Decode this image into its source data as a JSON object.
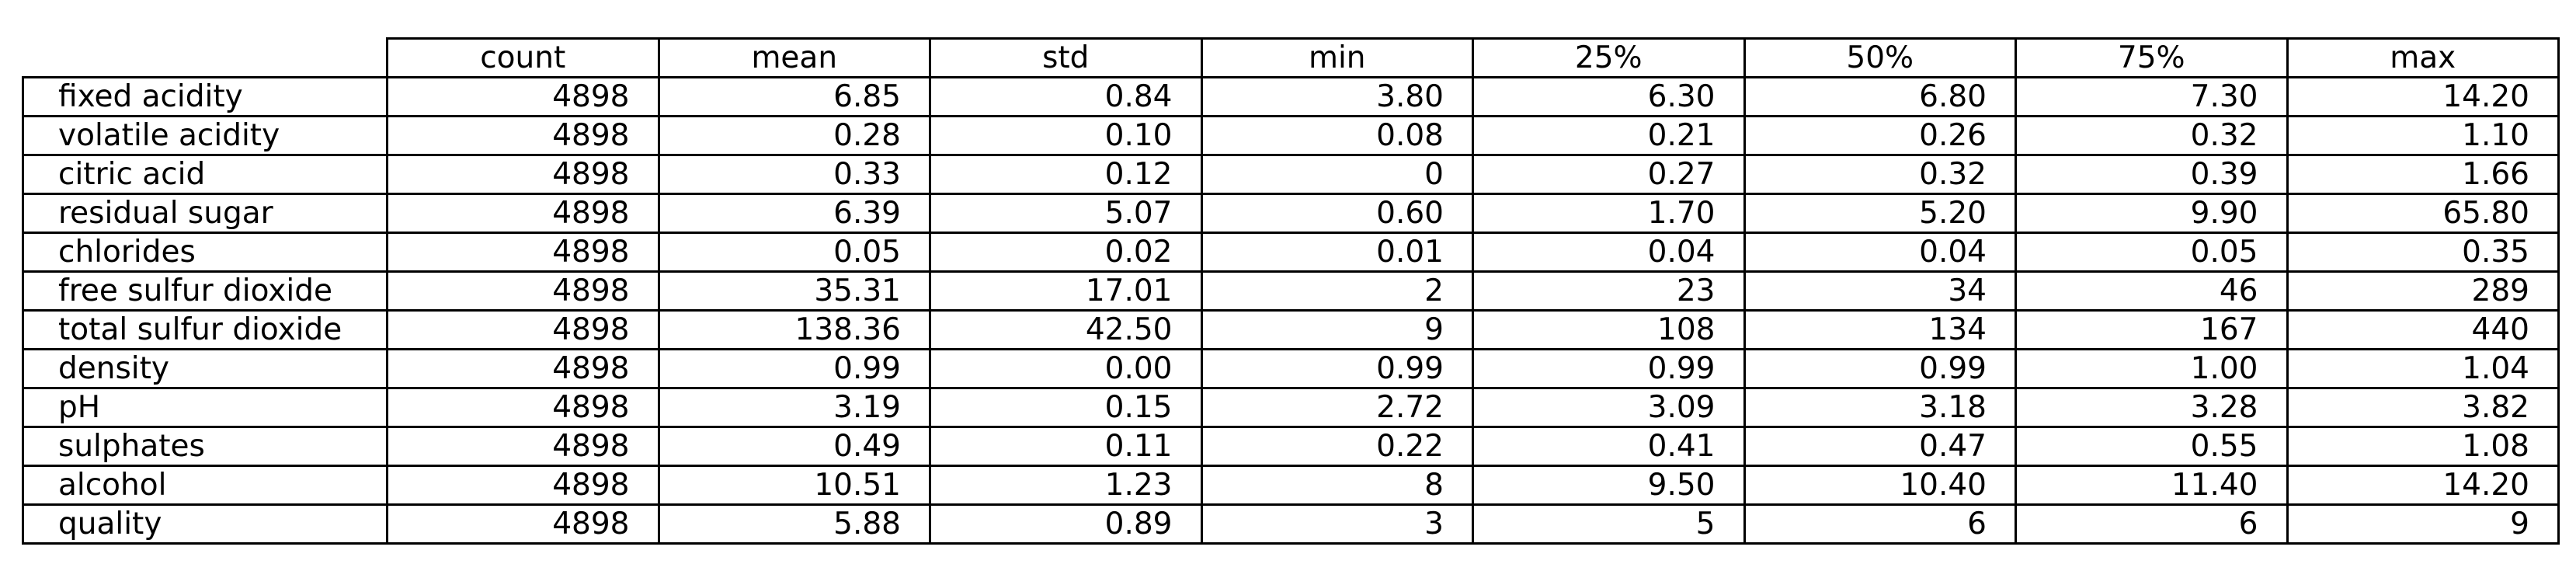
{
  "chart_data": {
    "type": "table",
    "columns": [
      "count",
      "mean",
      "std",
      "min",
      "25%",
      "50%",
      "75%",
      "max"
    ],
    "rows": [
      {
        "label": "fixed acidity",
        "values": [
          "4898",
          "6.85",
          "0.84",
          "3.80",
          "6.30",
          "6.80",
          "7.30",
          "14.20"
        ]
      },
      {
        "label": "volatile acidity",
        "values": [
          "4898",
          "0.28",
          "0.10",
          "0.08",
          "0.21",
          "0.26",
          "0.32",
          "1.10"
        ]
      },
      {
        "label": "citric acid",
        "values": [
          "4898",
          "0.33",
          "0.12",
          "0",
          "0.27",
          "0.32",
          "0.39",
          "1.66"
        ]
      },
      {
        "label": "residual sugar",
        "values": [
          "4898",
          "6.39",
          "5.07",
          "0.60",
          "1.70",
          "5.20",
          "9.90",
          "65.80"
        ]
      },
      {
        "label": "chlorides",
        "values": [
          "4898",
          "0.05",
          "0.02",
          "0.01",
          "0.04",
          "0.04",
          "0.05",
          "0.35"
        ]
      },
      {
        "label": "free sulfur dioxide",
        "values": [
          "4898",
          "35.31",
          "17.01",
          "2",
          "23",
          "34",
          "46",
          "289"
        ]
      },
      {
        "label": "total sulfur dioxide",
        "values": [
          "4898",
          "138.36",
          "42.50",
          "9",
          "108",
          "134",
          "167",
          "440"
        ]
      },
      {
        "label": "density",
        "values": [
          "4898",
          "0.99",
          "0.00",
          "0.99",
          "0.99",
          "0.99",
          "1.00",
          "1.04"
        ]
      },
      {
        "label": "pH",
        "values": [
          "4898",
          "3.19",
          "0.15",
          "2.72",
          "3.09",
          "3.18",
          "3.28",
          "3.82"
        ]
      },
      {
        "label": "sulphates",
        "values": [
          "4898",
          "0.49",
          "0.11",
          "0.22",
          "0.41",
          "0.47",
          "0.55",
          "1.08"
        ]
      },
      {
        "label": "alcohol",
        "values": [
          "4898",
          "10.51",
          "1.23",
          "8",
          "9.50",
          "10.40",
          "11.40",
          "14.20"
        ]
      },
      {
        "label": "quality",
        "values": [
          "4898",
          "5.88",
          "0.89",
          "3",
          "5",
          "6",
          "6",
          "9"
        ]
      }
    ]
  }
}
